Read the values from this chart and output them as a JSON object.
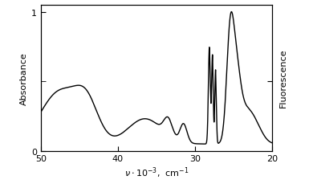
{
  "ylabel_left": "Absorbance",
  "ylabel_right": "Fluorescence",
  "xlim": [
    50,
    20
  ],
  "ylim": [
    0,
    1.05
  ],
  "yticks_left": [
    0,
    1
  ],
  "yticks_right_minor": [
    0.5
  ],
  "xticks": [
    50,
    40,
    30,
    20
  ],
  "background_color": "#ffffff",
  "line_color": "#000000",
  "linewidth": 1.0,
  "xlabel": "\\nu\\cdot10^{-3},  cm^{-1}"
}
